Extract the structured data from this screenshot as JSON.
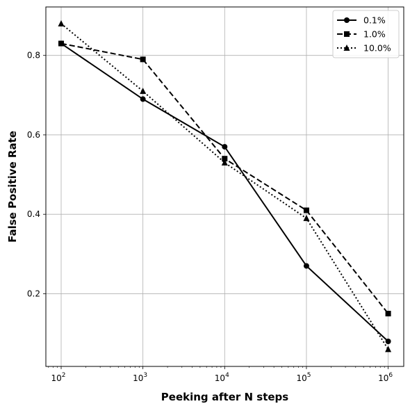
{
  "chart_data": {
    "type": "line",
    "title": "",
    "xlabel": "Peeking after N steps",
    "ylabel": "False Positive Rate",
    "x_scale": "log",
    "x": [
      100,
      1000,
      10000,
      100000,
      1000000
    ],
    "x_tick_values": [
      100,
      1000,
      10000,
      100000,
      1000000
    ],
    "x_tick_labels": [
      {
        "base": "10",
        "exp": "2"
      },
      {
        "base": "10",
        "exp": "3"
      },
      {
        "base": "10",
        "exp": "4"
      },
      {
        "base": "10",
        "exp": "5"
      },
      {
        "base": "10",
        "exp": "6"
      }
    ],
    "y_ticks": [
      0.2,
      0.4,
      0.6,
      0.8
    ],
    "y_tick_labels": [
      "0.2",
      "0.4",
      "0.6",
      "0.8"
    ],
    "xlim": [
      65,
      1550000
    ],
    "ylim": [
      0.017,
      0.922
    ],
    "grid": true,
    "legend_position": "top-right",
    "series": [
      {
        "name": "0.1%",
        "marker": "circle",
        "line_style": "solid",
        "color": "#000000",
        "values": [
          0.83,
          0.69,
          0.57,
          0.27,
          0.08
        ]
      },
      {
        "name": "1.0%",
        "marker": "square",
        "line_style": "dashed",
        "color": "#000000",
        "values": [
          0.83,
          0.79,
          0.54,
          0.41,
          0.15
        ]
      },
      {
        "name": "10.0%",
        "marker": "triangle",
        "line_style": "dotted",
        "color": "#000000",
        "values": [
          0.88,
          0.71,
          0.53,
          0.39,
          0.06
        ]
      }
    ]
  }
}
